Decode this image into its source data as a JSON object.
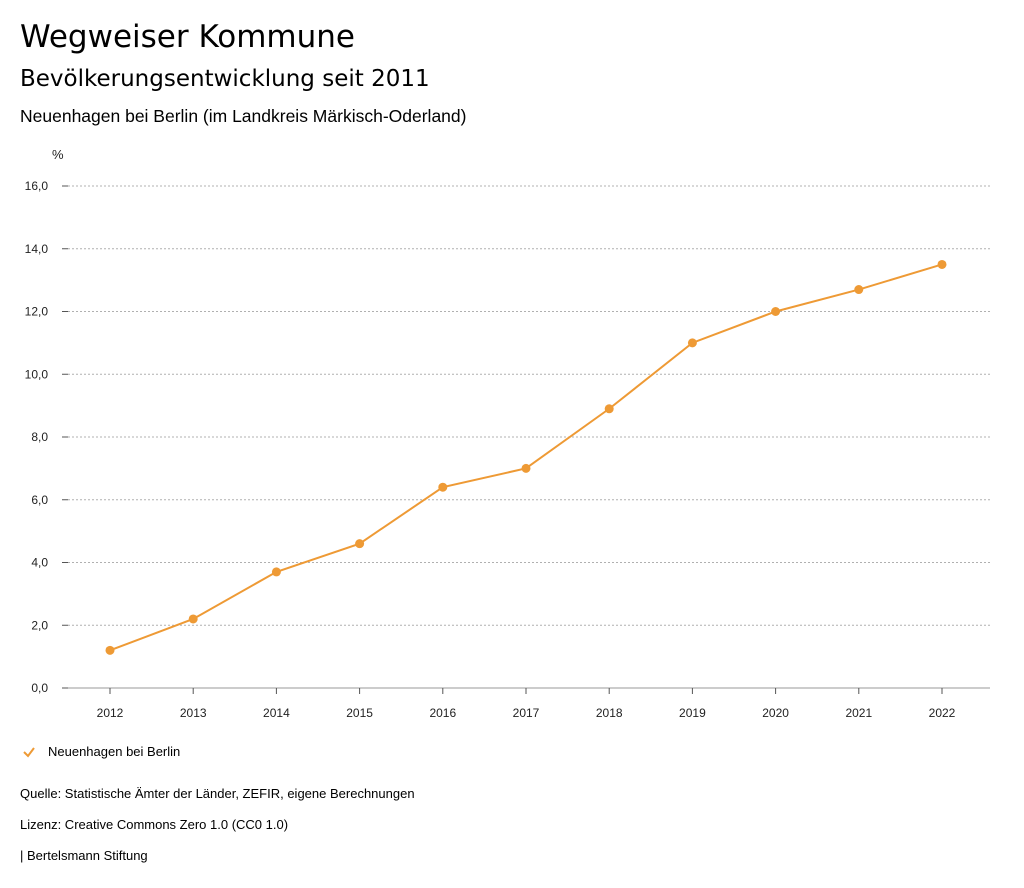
{
  "header": {
    "title": "Wegweiser Kommune",
    "subtitle": "Bevölkerungsentwicklung seit 2011",
    "region": "Neuenhagen bei Berlin (im Landkreis Märkisch-Oderland)"
  },
  "chart_data": {
    "type": "line",
    "ylabel": "%",
    "x": [
      "2012",
      "2013",
      "2014",
      "2015",
      "2016",
      "2017",
      "2018",
      "2019",
      "2020",
      "2021",
      "2022"
    ],
    "yticks": [
      "0,0",
      "2,0",
      "4,0",
      "6,0",
      "8,0",
      "10,0",
      "12,0",
      "14,0",
      "16,0"
    ],
    "ylim": [
      0,
      16
    ],
    "grid": true,
    "series": [
      {
        "name": "Neuenhagen bei Berlin",
        "values": [
          1.2,
          2.2,
          3.7,
          4.6,
          6.4,
          7.0,
          8.9,
          11.0,
          12.0,
          12.7,
          13.5
        ]
      }
    ],
    "legend_position": "bottom-left",
    "color": "#ee9a35"
  },
  "footer": {
    "source": "Quelle: Statistische Ämter der Länder, ZEFIR, eigene Berechnungen",
    "license": "Lizenz: Creative Commons Zero 1.0 (CC0 1.0)",
    "publisher": "| Bertelsmann Stiftung"
  }
}
